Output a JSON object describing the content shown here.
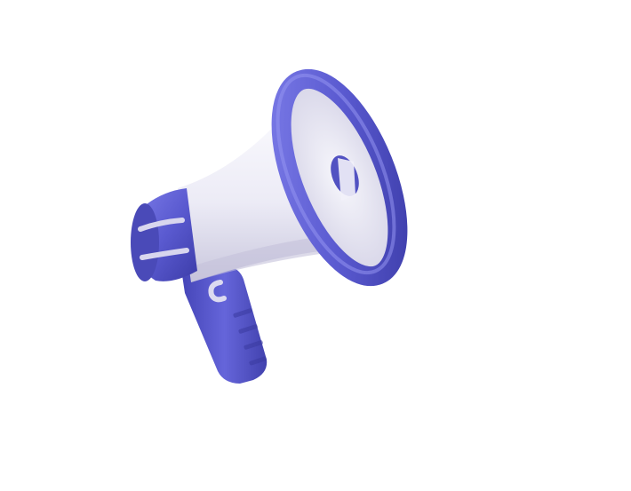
{
  "image": {
    "subject": "megaphone-3d",
    "colors": {
      "background": "#ffffff",
      "accent": "#5a5ad0",
      "accent_dark": "#3c3ca8",
      "accent_light": "#8080ea",
      "body_light": "#f0eff8",
      "body_shadow": "#c9c7dd"
    }
  }
}
